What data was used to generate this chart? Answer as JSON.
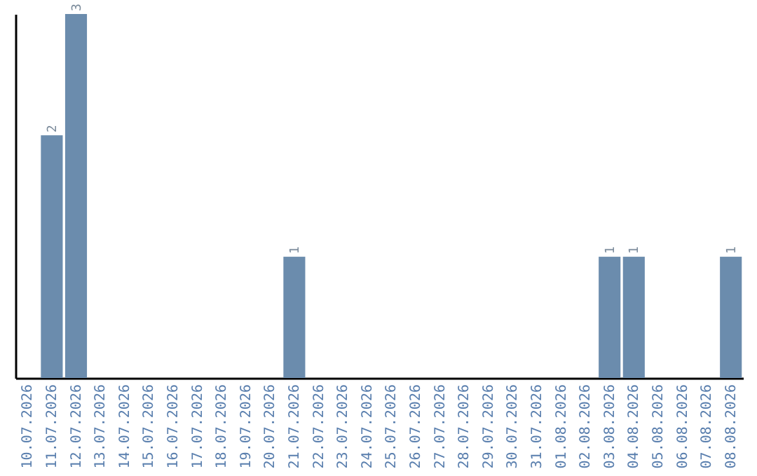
{
  "chart_data": {
    "type": "bar",
    "categories": [
      "10.07.2026",
      "11.07.2026",
      "12.07.2026",
      "13.07.2026",
      "14.07.2026",
      "15.07.2026",
      "16.07.2026",
      "17.07.2026",
      "18.07.2026",
      "19.07.2026",
      "20.07.2026",
      "21.07.2026",
      "22.07.2026",
      "23.07.2026",
      "24.07.2026",
      "25.07.2026",
      "26.07.2026",
      "27.07.2026",
      "28.07.2026",
      "29.07.2026",
      "30.07.2026",
      "31.07.2026",
      "01.08.2026",
      "02.08.2026",
      "03.08.2026",
      "04.08.2026",
      "05.08.2026",
      "06.08.2026",
      "07.08.2026",
      "08.08.2026"
    ],
    "values": [
      0,
      2,
      3,
      0,
      0,
      0,
      0,
      0,
      0,
      0,
      0,
      1,
      0,
      0,
      0,
      0,
      0,
      0,
      0,
      0,
      0,
      0,
      0,
      0,
      1,
      1,
      0,
      0,
      0,
      1
    ],
    "value_labels": [
      null,
      "2",
      "3",
      null,
      null,
      null,
      null,
      null,
      null,
      null,
      null,
      "1",
      null,
      null,
      null,
      null,
      null,
      null,
      null,
      null,
      null,
      null,
      null,
      null,
      "1",
      "1",
      null,
      null,
      null,
      "1"
    ],
    "color": "#6b8cad"
  }
}
